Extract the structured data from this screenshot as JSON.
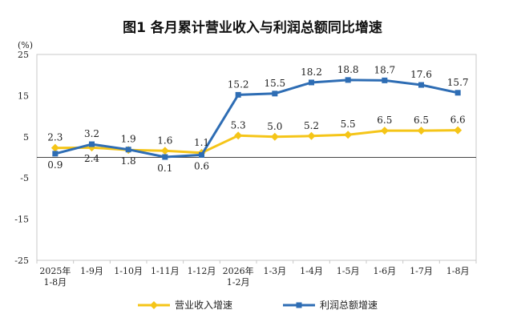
{
  "chart_data": {
    "type": "line",
    "title": "图1  各月累计营业收入与利润总额同比增速",
    "ylabel": "(%)",
    "ylim": [
      -25,
      25
    ],
    "yticks": [
      25,
      15,
      5,
      -5,
      -15,
      -25
    ],
    "categories": [
      [
        "2025年",
        "1-8月"
      ],
      [
        "1-9月"
      ],
      [
        "1-10月"
      ],
      [
        "1-11月"
      ],
      [
        "1-12月"
      ],
      [
        "2026年",
        "1-2月"
      ],
      [
        "1-3月"
      ],
      [
        "1-4月"
      ],
      [
        "1-5月"
      ],
      [
        "1-6月"
      ],
      [
        "1-7月"
      ],
      [
        "1-8月"
      ]
    ],
    "series": [
      {
        "name": "营业收入增速",
        "color": "#F5C518",
        "marker": "diamond",
        "values": [
          2.3,
          2.4,
          1.8,
          1.6,
          1.1,
          5.3,
          5.0,
          5.2,
          5.5,
          6.5,
          6.5,
          6.6
        ]
      },
      {
        "name": "利润总额增速",
        "color": "#2E6DB4",
        "marker": "square",
        "values": [
          0.9,
          3.2,
          1.9,
          0.1,
          0.6,
          15.2,
          15.5,
          18.2,
          18.8,
          18.7,
          17.6,
          15.7
        ]
      }
    ],
    "data_labels": [
      {
        "text": "2.3",
        "series": 0,
        "index": 0,
        "pos": "above"
      },
      {
        "text": "0.9",
        "series": 1,
        "index": 0,
        "pos": "below"
      },
      {
        "text": "3.2",
        "series": 1,
        "index": 1,
        "pos": "above"
      },
      {
        "text": "2.4",
        "series": 0,
        "index": 1,
        "pos": "below"
      },
      {
        "text": "1.9",
        "series": 1,
        "index": 2,
        "pos": "above"
      },
      {
        "text": "1.8",
        "series": 0,
        "index": 2,
        "pos": "below"
      },
      {
        "text": "1.6",
        "series": 0,
        "index": 3,
        "pos": "above"
      },
      {
        "text": "0.1",
        "series": 1,
        "index": 3,
        "pos": "below"
      },
      {
        "text": "1.1",
        "series": 0,
        "index": 4,
        "pos": "above"
      },
      {
        "text": "0.6",
        "series": 1,
        "index": 4,
        "pos": "below"
      },
      {
        "text": "5.3",
        "series": 0,
        "index": 5,
        "pos": "above"
      },
      {
        "text": "15.2",
        "series": 1,
        "index": 5,
        "pos": "above"
      },
      {
        "text": "5.0",
        "series": 0,
        "index": 6,
        "pos": "above"
      },
      {
        "text": "15.5",
        "series": 1,
        "index": 6,
        "pos": "above"
      },
      {
        "text": "5.2",
        "series": 0,
        "index": 7,
        "pos": "above"
      },
      {
        "text": "18.2",
        "series": 1,
        "index": 7,
        "pos": "above"
      },
      {
        "text": "5.5",
        "series": 0,
        "index": 8,
        "pos": "above"
      },
      {
        "text": "18.8",
        "series": 1,
        "index": 8,
        "pos": "above"
      },
      {
        "text": "6.5",
        "series": 0,
        "index": 9,
        "pos": "above"
      },
      {
        "text": "18.7",
        "series": 1,
        "index": 9,
        "pos": "above"
      },
      {
        "text": "6.5",
        "series": 0,
        "index": 10,
        "pos": "above"
      },
      {
        "text": "17.6",
        "series": 1,
        "index": 10,
        "pos": "above"
      },
      {
        "text": "6.6",
        "series": 0,
        "index": 11,
        "pos": "above"
      },
      {
        "text": "15.7",
        "series": 1,
        "index": 11,
        "pos": "above"
      }
    ],
    "grid": false,
    "legend": "bottom-center"
  }
}
